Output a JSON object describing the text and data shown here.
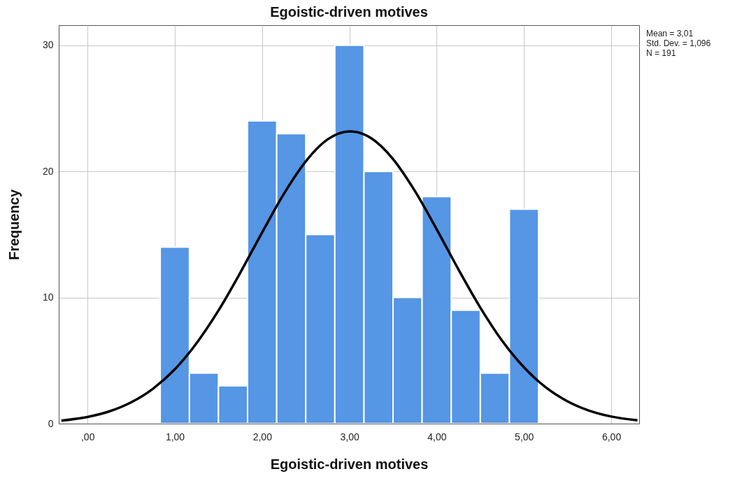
{
  "chart_data": {
    "type": "histogram",
    "title": "Egoistic-driven motives",
    "xlabel": "Egoistic-driven motives",
    "ylabel": "Frequency",
    "bins": [
      0.833,
      1.167,
      1.5,
      1.833,
      2.167,
      2.5,
      2.833,
      3.167,
      3.5,
      3.833,
      4.167,
      4.5,
      4.833,
      5.167
    ],
    "values": [
      14,
      4,
      3,
      24,
      23,
      15,
      30,
      20,
      10,
      18,
      9,
      4,
      17
    ],
    "color": "#5596e5",
    "series": [
      {
        "type": "line",
        "color": "#000000",
        "x": [
          -0.3,
          0,
          0.25,
          0.5,
          0.75,
          1,
          1.25,
          1.5,
          1.75,
          2,
          2.25,
          2.5,
          2.75,
          3,
          3.25,
          3.5,
          3.75,
          4,
          4.25,
          4.5,
          4.75,
          5,
          5.25,
          5.5,
          5.75,
          6,
          6.3
        ],
        "values": [
          0.24,
          0.53,
          0.97,
          1.69,
          2.77,
          4.31,
          6.39,
          8.97,
          11.97,
          15.16,
          18.23,
          20.8,
          22.54,
          23.18,
          22.63,
          20.98,
          18.45,
          15.41,
          12.22,
          9.2,
          6.57,
          4.46,
          2.87,
          1.76,
          1.02,
          0.56,
          0.26
        ]
      }
    ],
    "xlim": [
      -0.33,
      6.32
    ],
    "ylim": [
      0,
      31.6
    ],
    "xticks": [
      {
        "value": 0,
        "label": ",00"
      },
      {
        "value": 1,
        "label": "1,00"
      },
      {
        "value": 2,
        "label": "2,00"
      },
      {
        "value": 3,
        "label": "3,00"
      },
      {
        "value": 4,
        "label": "4,00"
      },
      {
        "value": 5,
        "label": "5,00"
      },
      {
        "value": 6,
        "label": "6,00"
      }
    ],
    "yticks": [
      0,
      10,
      20,
      30
    ],
    "grid": true,
    "annotations": [
      "Mean = 3,01",
      "Std. Dev. = 1,096",
      "N = 191"
    ]
  }
}
